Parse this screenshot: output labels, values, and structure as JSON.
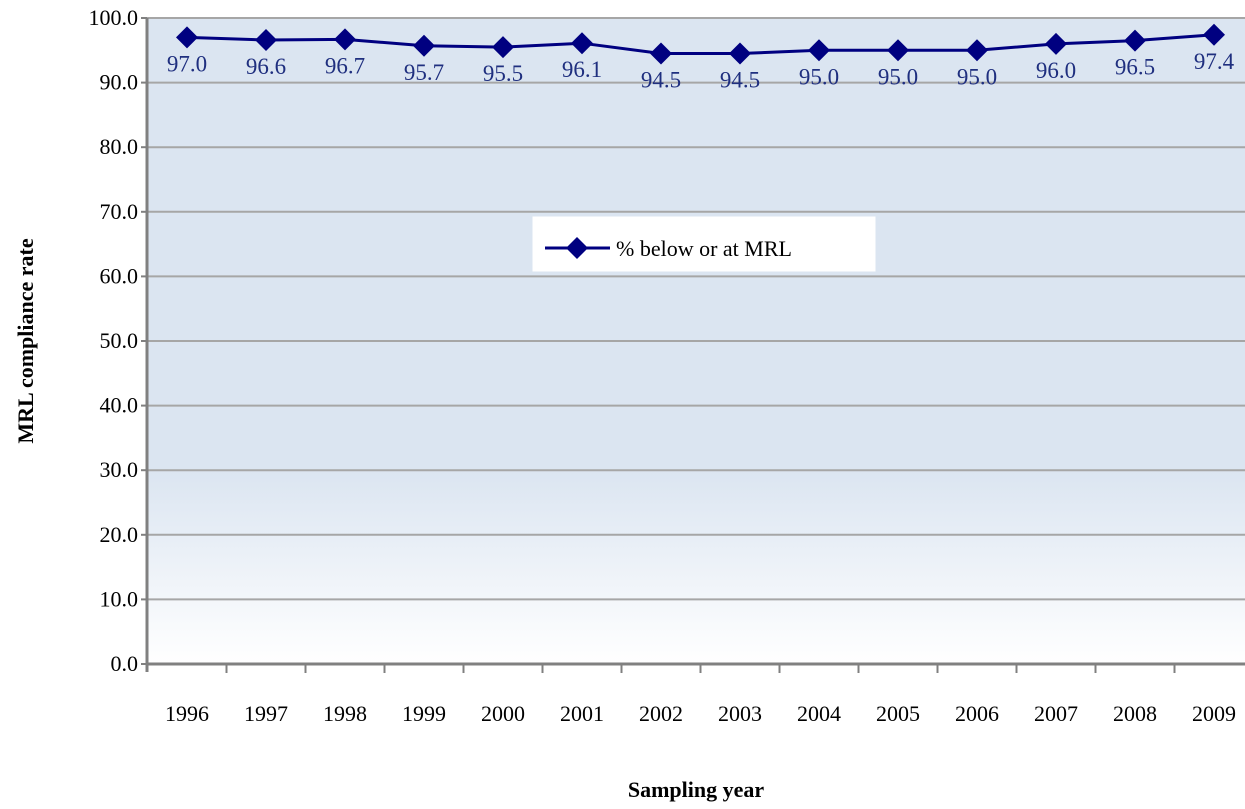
{
  "chart_data": {
    "type": "line",
    "title": "",
    "xlabel": "Sampling year",
    "ylabel": "MRL compliance rate",
    "ylim": [
      0,
      100
    ],
    "y_ticks": [
      "0.0",
      "10.0",
      "20.0",
      "30.0",
      "40.0",
      "50.0",
      "60.0",
      "70.0",
      "80.0",
      "90.0",
      "100.0"
    ],
    "categories": [
      "1996",
      "1997",
      "1998",
      "1999",
      "2000",
      "2001",
      "2002",
      "2003",
      "2004",
      "2005",
      "2006",
      "2007",
      "2008",
      "2009"
    ],
    "series": [
      {
        "name": "% below or at MRL",
        "values": [
          97.0,
          96.6,
          96.7,
          95.7,
          95.5,
          96.1,
          94.5,
          94.5,
          95.0,
          95.0,
          95.0,
          96.0,
          96.5,
          97.4
        ],
        "labels": [
          "97.0",
          "96.6",
          "96.7",
          "95.7",
          "95.5",
          "96.1",
          "94.5",
          "94.5",
          "95.0",
          "95.0",
          "95.0",
          "96.0",
          "96.5",
          "97.4"
        ],
        "color": "#000080"
      }
    ],
    "grid": true,
    "legend_position": "center-top"
  },
  "colors": {
    "series_line": "#000080",
    "data_label": "#1f2f7f",
    "gridline": "#a6a6a6",
    "axis": "#808080",
    "plot_bg_top": "#dbe5f1",
    "plot_bg_bottom": "#ffffff"
  }
}
